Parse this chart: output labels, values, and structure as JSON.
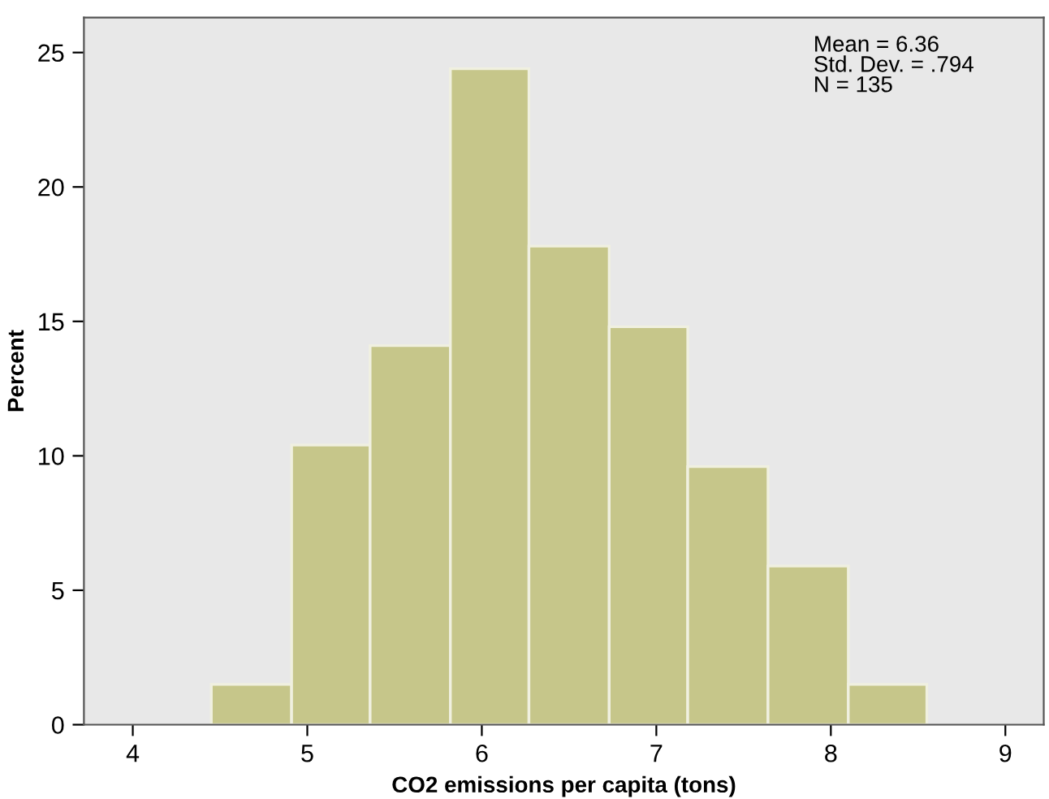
{
  "chart_data": {
    "type": "histogram",
    "xlabel": "CO2 emissions per capita (tons)",
    "ylabel": "Percent",
    "bins": [
      4.45,
      4.91,
      5.36,
      5.82,
      6.27,
      6.73,
      7.18,
      7.64,
      8.1,
      8.55
    ],
    "values": [
      1.5,
      10.4,
      14.1,
      24.4,
      17.8,
      14.8,
      9.6,
      5.9,
      1.5
    ],
    "color": "#c6c68a",
    "xlim": [
      3.72,
      9.22
    ],
    "xticks": [
      4,
      5,
      6,
      7,
      8,
      9
    ],
    "ylim": [
      0,
      26.3
    ],
    "yticks": [
      0,
      5,
      10,
      15,
      20,
      25
    ],
    "grid": false,
    "annotations": [
      "Mean = 6.36\nStd. Dev. = .794\nN = 135"
    ]
  }
}
